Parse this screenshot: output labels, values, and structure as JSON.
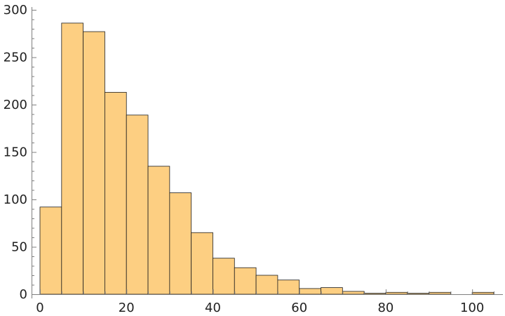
{
  "chart_data": {
    "type": "bar",
    "bin_width": 5,
    "bins": [
      {
        "start": 0,
        "end": 5,
        "count": 92
      },
      {
        "start": 5,
        "end": 10,
        "count": 286
      },
      {
        "start": 10,
        "end": 15,
        "count": 277
      },
      {
        "start": 15,
        "end": 20,
        "count": 213
      },
      {
        "start": 20,
        "end": 25,
        "count": 189
      },
      {
        "start": 25,
        "end": 30,
        "count": 135
      },
      {
        "start": 30,
        "end": 35,
        "count": 107
      },
      {
        "start": 35,
        "end": 40,
        "count": 65
      },
      {
        "start": 40,
        "end": 45,
        "count": 38
      },
      {
        "start": 45,
        "end": 50,
        "count": 28
      },
      {
        "start": 50,
        "end": 55,
        "count": 20
      },
      {
        "start": 55,
        "end": 60,
        "count": 15
      },
      {
        "start": 60,
        "end": 65,
        "count": 6
      },
      {
        "start": 65,
        "end": 70,
        "count": 7
      },
      {
        "start": 70,
        "end": 75,
        "count": 3
      },
      {
        "start": 75,
        "end": 80,
        "count": 1
      },
      {
        "start": 80,
        "end": 85,
        "count": 2
      },
      {
        "start": 85,
        "end": 90,
        "count": 1
      },
      {
        "start": 90,
        "end": 95,
        "count": 2
      },
      {
        "start": 95,
        "end": 100,
        "count": 0
      },
      {
        "start": 100,
        "end": 105,
        "count": 2
      }
    ],
    "xlim": [
      0,
      105
    ],
    "ylim": [
      0,
      300
    ],
    "x_ticks": [
      "0",
      "20",
      "40",
      "60",
      "80",
      "100"
    ],
    "y_ticks": [
      "0",
      "50",
      "100",
      "150",
      "200",
      "250",
      "300"
    ],
    "title": "",
    "xlabel": "",
    "ylabel": "",
    "grid": false,
    "legend": "none",
    "bar_color": "#fdcf82",
    "edge_color": "#1e1e1e",
    "axis_color": "#7f7f7f"
  }
}
